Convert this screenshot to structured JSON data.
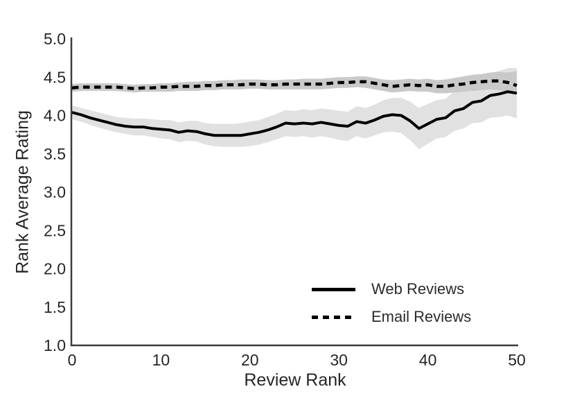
{
  "figure": {
    "background": "#ffffff",
    "text_color": "#262626"
  },
  "axis": {
    "spine_color": "#3b3b3b"
  },
  "chart_data": {
    "type": "line",
    "title": "",
    "xlabel": "Review Rank",
    "ylabel": "Rank Average Rating",
    "xlim": [
      0,
      50
    ],
    "ylim": [
      1.0,
      5.0
    ],
    "xticks": [
      "0",
      "10",
      "20",
      "30",
      "40",
      "50"
    ],
    "yticks": [
      "1.0",
      "1.5",
      "2.0",
      "2.5",
      "3.0",
      "3.5",
      "4.0",
      "4.5",
      "5.0"
    ],
    "grid": false,
    "legend_position": "lower right",
    "x": [
      0,
      1,
      2,
      3,
      4,
      5,
      6,
      7,
      8,
      9,
      10,
      11,
      12,
      13,
      14,
      15,
      16,
      17,
      18,
      19,
      20,
      21,
      22,
      23,
      24,
      25,
      26,
      27,
      28,
      29,
      30,
      31,
      32,
      33,
      34,
      35,
      36,
      37,
      38,
      39,
      40,
      41,
      42,
      43,
      44,
      45,
      46,
      47,
      48,
      49,
      50
    ],
    "series": [
      {
        "name": "Web Reviews",
        "style": "solid",
        "color": "#000000",
        "band_color": "#e1e1e1",
        "values": [
          4.04,
          4.01,
          3.97,
          3.94,
          3.91,
          3.88,
          3.86,
          3.85,
          3.85,
          3.83,
          3.82,
          3.81,
          3.78,
          3.8,
          3.79,
          3.76,
          3.74,
          3.74,
          3.74,
          3.74,
          3.76,
          3.78,
          3.81,
          3.85,
          3.9,
          3.89,
          3.9,
          3.89,
          3.91,
          3.89,
          3.87,
          3.86,
          3.92,
          3.9,
          3.94,
          3.99,
          4.01,
          4.0,
          3.93,
          3.83,
          3.89,
          3.95,
          3.97,
          4.06,
          4.09,
          4.17,
          4.19,
          4.26,
          4.28,
          4.31,
          4.29
        ],
        "lower": [
          3.95,
          3.92,
          3.88,
          3.84,
          3.81,
          3.78,
          3.76,
          3.74,
          3.74,
          3.72,
          3.7,
          3.69,
          3.65,
          3.67,
          3.66,
          3.62,
          3.6,
          3.59,
          3.59,
          3.59,
          3.6,
          3.62,
          3.65,
          3.69,
          3.73,
          3.72,
          3.73,
          3.71,
          3.73,
          3.71,
          3.68,
          3.67,
          3.73,
          3.7,
          3.74,
          3.78,
          3.79,
          3.77,
          3.68,
          3.56,
          3.63,
          3.7,
          3.72,
          3.8,
          3.83,
          3.9,
          3.91,
          3.97,
          3.98,
          4.0,
          3.96
        ],
        "upper": [
          4.13,
          4.1,
          4.07,
          4.04,
          4.01,
          3.98,
          3.97,
          3.96,
          3.96,
          3.95,
          3.94,
          3.94,
          3.91,
          3.93,
          3.93,
          3.9,
          3.89,
          3.89,
          3.89,
          3.9,
          3.92,
          3.94,
          3.98,
          4.02,
          4.07,
          4.06,
          4.08,
          4.07,
          4.09,
          4.08,
          4.06,
          4.05,
          4.12,
          4.1,
          4.14,
          4.2,
          4.23,
          4.23,
          4.18,
          4.1,
          4.15,
          4.2,
          4.22,
          4.32,
          4.35,
          4.44,
          4.47,
          4.55,
          4.58,
          4.62,
          4.62
        ]
      },
      {
        "name": "Email Reviews",
        "style": "dashed",
        "color": "#000000",
        "band_color": "#c9c9c9",
        "values": [
          4.36,
          4.37,
          4.37,
          4.37,
          4.37,
          4.37,
          4.36,
          4.35,
          4.36,
          4.36,
          4.37,
          4.37,
          4.38,
          4.38,
          4.38,
          4.39,
          4.39,
          4.4,
          4.4,
          4.4,
          4.41,
          4.41,
          4.4,
          4.4,
          4.41,
          4.41,
          4.41,
          4.41,
          4.41,
          4.42,
          4.43,
          4.43,
          4.44,
          4.44,
          4.42,
          4.4,
          4.38,
          4.39,
          4.4,
          4.39,
          4.4,
          4.38,
          4.38,
          4.4,
          4.41,
          4.43,
          4.44,
          4.45,
          4.45,
          4.43,
          4.39
        ],
        "lower": [
          4.31,
          4.32,
          4.32,
          4.32,
          4.32,
          4.32,
          4.31,
          4.3,
          4.31,
          4.31,
          4.31,
          4.31,
          4.32,
          4.32,
          4.32,
          4.33,
          4.33,
          4.34,
          4.34,
          4.34,
          4.35,
          4.35,
          4.34,
          4.34,
          4.34,
          4.34,
          4.34,
          4.34,
          4.34,
          4.35,
          4.36,
          4.36,
          4.37,
          4.36,
          4.34,
          4.32,
          4.3,
          4.31,
          4.32,
          4.31,
          4.31,
          4.29,
          4.29,
          4.3,
          4.31,
          4.32,
          4.33,
          4.34,
          4.33,
          4.31,
          4.28
        ],
        "upper": [
          4.41,
          4.42,
          4.42,
          4.42,
          4.42,
          4.42,
          4.41,
          4.4,
          4.41,
          4.41,
          4.42,
          4.42,
          4.43,
          4.44,
          4.44,
          4.45,
          4.45,
          4.46,
          4.46,
          4.47,
          4.47,
          4.47,
          4.46,
          4.46,
          4.47,
          4.47,
          4.48,
          4.48,
          4.48,
          4.49,
          4.5,
          4.5,
          4.51,
          4.51,
          4.49,
          4.47,
          4.46,
          4.47,
          4.48,
          4.47,
          4.48,
          4.46,
          4.47,
          4.49,
          4.51,
          4.53,
          4.54,
          4.56,
          4.57,
          4.56,
          4.58
        ]
      }
    ]
  }
}
